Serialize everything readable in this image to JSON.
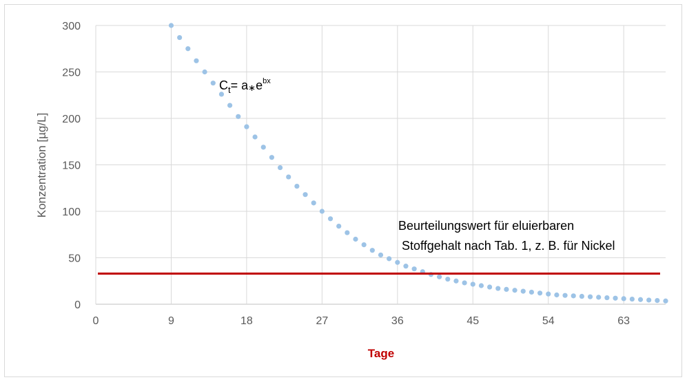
{
  "chart_data": {
    "type": "scatter",
    "xlabel": "Tage",
    "ylabel": "Konzentration [µg/L]",
    "xlim": [
      0,
      68
    ],
    "ylim": [
      0,
      300
    ],
    "x_ticks": [
      0,
      9,
      18,
      27,
      36,
      45,
      54,
      63
    ],
    "y_ticks": [
      0,
      50,
      100,
      150,
      200,
      250,
      300
    ],
    "grid": "both",
    "legend": "none",
    "series": [
      {
        "kind": "points",
        "color": "#9dc3e6",
        "x": [
          9,
          10,
          11,
          12,
          13,
          14,
          15,
          16,
          17,
          18,
          19,
          20,
          21,
          22,
          23,
          24,
          25,
          26,
          27,
          28,
          29,
          30,
          31,
          32,
          33,
          34,
          35,
          36,
          37,
          38,
          39,
          40,
          41,
          42,
          43,
          44,
          45,
          46,
          47,
          48,
          49,
          50,
          51,
          52,
          53,
          54,
          55,
          56,
          57,
          58,
          59,
          60,
          61,
          62,
          63,
          64,
          65,
          66,
          67,
          68
        ],
        "y": [
          300,
          287,
          275,
          262,
          250,
          238,
          226,
          214,
          202,
          191,
          180,
          169,
          158,
          147,
          137,
          127,
          118,
          109,
          100,
          92,
          84,
          77,
          70,
          64,
          58,
          53,
          49,
          45,
          41,
          38,
          35,
          32,
          29.5,
          27,
          25,
          23,
          21.5,
          20,
          18.5,
          17,
          16,
          15,
          14,
          13,
          12,
          11,
          10,
          9.5,
          9,
          8.5,
          8,
          7.5,
          7,
          6.5,
          6,
          5.5,
          5,
          4.5,
          4,
          3.5
        ]
      },
      {
        "kind": "horizontal-line",
        "color": "#c00000",
        "y": 33
      }
    ],
    "annotations": {
      "formula_main": "C",
      "formula_sub": "t",
      "formula_mid": "= a",
      "formula_op": "∗",
      "formula_e": "e",
      "formula_sup": "bx",
      "line_label_1": "Beurteilungswert für eluierbaren",
      "line_label_2": "Stoffgehalt nach Tab. 1, z. B. für Nickel"
    },
    "colors": {
      "xlabel": "#c00000",
      "grid": "#d9d9d9",
      "axis": "#bfbfbf"
    }
  }
}
